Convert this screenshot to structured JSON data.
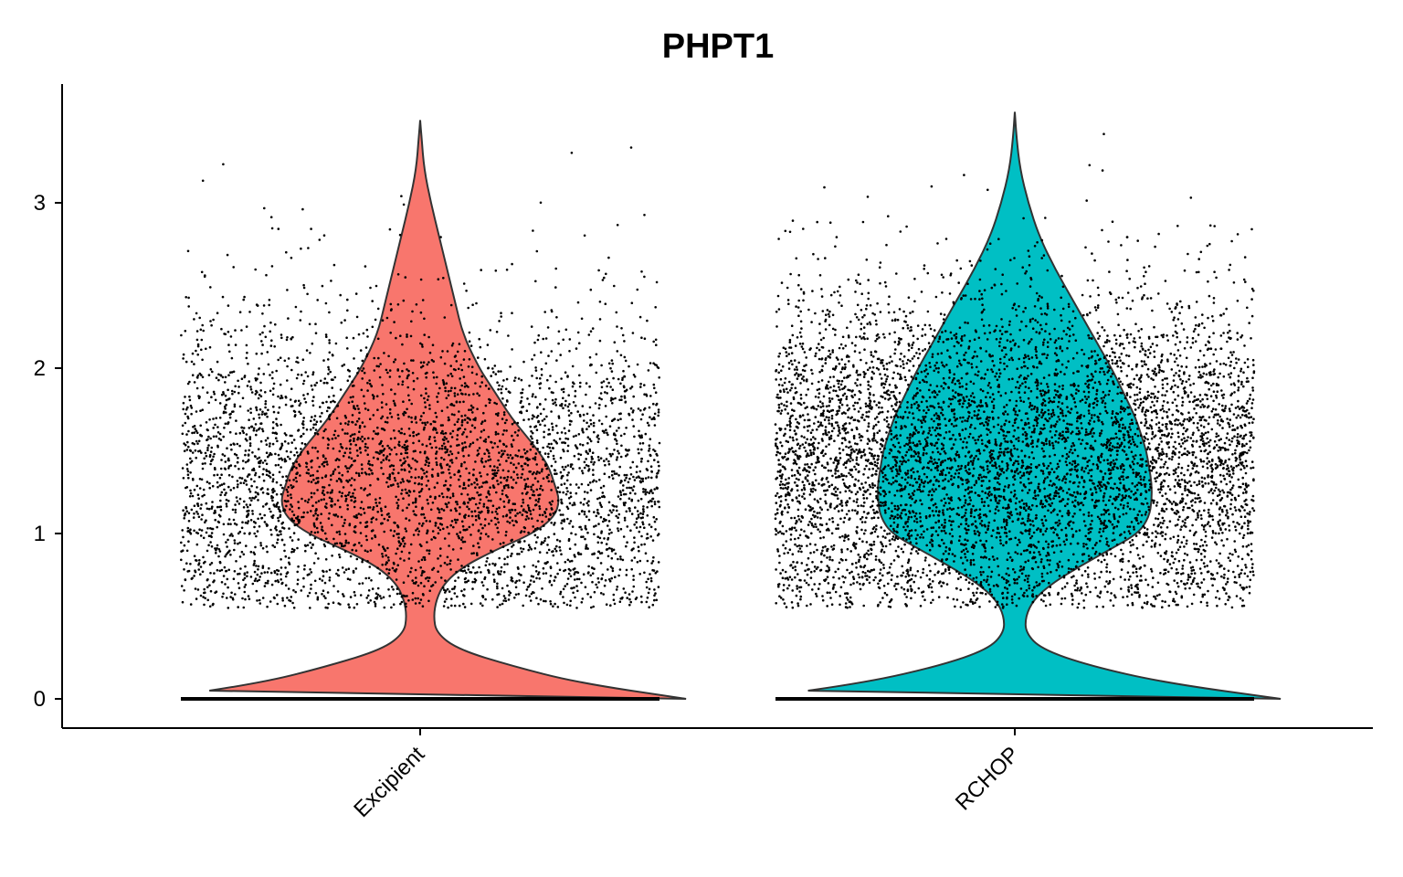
{
  "chart_data": {
    "type": "violin",
    "title": "PHPT1",
    "xlabel": "",
    "ylabel": "",
    "ylim": [
      -0.18,
      3.74
    ],
    "yticks": [
      0,
      1,
      2,
      3
    ],
    "categories": [
      "Excipient",
      "RCHOP"
    ],
    "series": [
      {
        "color": "#F8766D",
        "max": 3.5,
        "zero_fraction_approx": 0.55,
        "nonzero_center": 1.35,
        "density_profile": [
          [
            0.0,
            0.99
          ],
          [
            0.1,
            0.58
          ],
          [
            0.2,
            0.34
          ],
          [
            0.3,
            0.14
          ],
          [
            0.4,
            0.06
          ],
          [
            0.5,
            0.05
          ],
          [
            0.6,
            0.06
          ],
          [
            0.7,
            0.09
          ],
          [
            0.8,
            0.16
          ],
          [
            0.9,
            0.28
          ],
          [
            1.0,
            0.42
          ],
          [
            1.1,
            0.5
          ],
          [
            1.2,
            0.52
          ],
          [
            1.3,
            0.5
          ],
          [
            1.4,
            0.48
          ],
          [
            1.5,
            0.44
          ],
          [
            1.6,
            0.39
          ],
          [
            1.7,
            0.34
          ],
          [
            1.8,
            0.3
          ],
          [
            1.9,
            0.26
          ],
          [
            2.0,
            0.22
          ],
          [
            2.2,
            0.16
          ],
          [
            2.4,
            0.13
          ],
          [
            2.6,
            0.1
          ],
          [
            2.8,
            0.07
          ],
          [
            3.0,
            0.04
          ],
          [
            3.2,
            0.015
          ],
          [
            3.4,
            0.005
          ],
          [
            3.5,
            0.0
          ]
        ]
      },
      {
        "color": "#00BFC4",
        "max": 3.55,
        "zero_fraction_approx": 0.45,
        "nonzero_center": 1.45,
        "density_profile": [
          [
            0.0,
            0.99
          ],
          [
            0.1,
            0.55
          ],
          [
            0.2,
            0.28
          ],
          [
            0.3,
            0.1
          ],
          [
            0.4,
            0.04
          ],
          [
            0.5,
            0.04
          ],
          [
            0.6,
            0.07
          ],
          [
            0.7,
            0.14
          ],
          [
            0.8,
            0.24
          ],
          [
            0.9,
            0.35
          ],
          [
            1.0,
            0.46
          ],
          [
            1.1,
            0.5
          ],
          [
            1.2,
            0.51
          ],
          [
            1.3,
            0.51
          ],
          [
            1.4,
            0.5
          ],
          [
            1.5,
            0.49
          ],
          [
            1.6,
            0.47
          ],
          [
            1.7,
            0.45
          ],
          [
            1.8,
            0.42
          ],
          [
            1.9,
            0.39
          ],
          [
            2.0,
            0.36
          ],
          [
            2.2,
            0.29
          ],
          [
            2.4,
            0.22
          ],
          [
            2.6,
            0.15
          ],
          [
            2.8,
            0.09
          ],
          [
            3.0,
            0.05
          ],
          [
            3.2,
            0.02
          ],
          [
            3.4,
            0.006
          ],
          [
            3.55,
            0.0
          ]
        ]
      }
    ]
  }
}
